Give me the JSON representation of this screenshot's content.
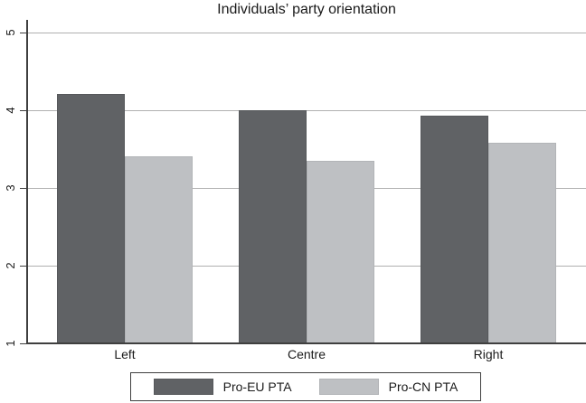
{
  "chart_data": {
    "type": "bar",
    "title": "Individuals’ party orientation",
    "categories": [
      "Left",
      "Centre",
      "Right"
    ],
    "series": [
      {
        "name": "Pro-EU PTA",
        "color": "#606265",
        "edge_color": "#56585b",
        "values": [
          4.21,
          4.0,
          3.93
        ]
      },
      {
        "name": "Pro-CN PTA",
        "color": "#bec0c3",
        "edge_color": "#b2b4b7",
        "values": [
          3.41,
          3.35,
          3.58
        ]
      }
    ],
    "ylabel": "",
    "xlabel": "",
    "ylim": [
      1,
      5
    ],
    "yticks": [
      1,
      2,
      3,
      4,
      5
    ],
    "ytick_labels": [
      "1",
      "2",
      "3",
      "4",
      "5"
    ],
    "grid": true,
    "gridline_values": [
      2,
      3,
      4,
      5
    ],
    "legend_position": "bottom-center",
    "colors": {
      "gridline": "#b0b0b0",
      "axis": "#3f3f3f",
      "text": "#1a1a1a",
      "background": "#ffffff"
    }
  }
}
